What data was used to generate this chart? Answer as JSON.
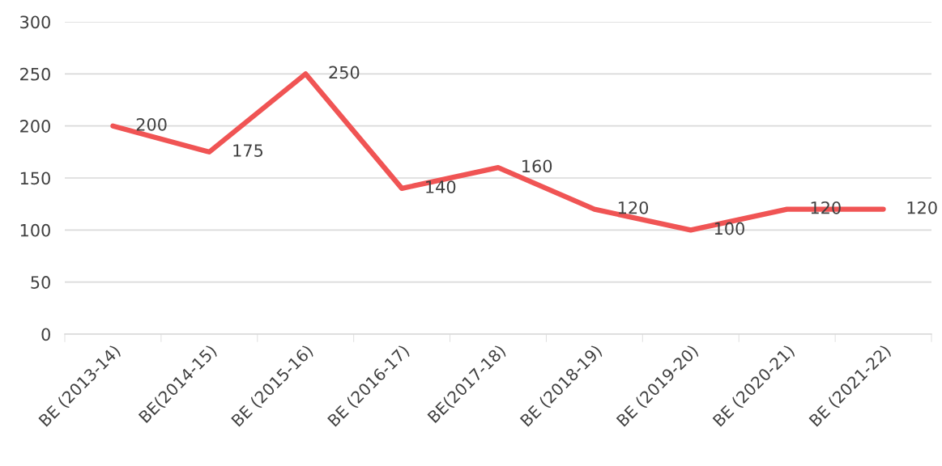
{
  "chart_data": {
    "type": "line",
    "categories": [
      "BE (2013-14)",
      "BE(2014-15)",
      "BE (2015-16)",
      "BE (2016-17)",
      "BE(2017-18)",
      "BE (2018-19)",
      "BE (2019-20)",
      "BE (2020-21)",
      "BE (2021-22)"
    ],
    "series": [
      {
        "color": "#f05454",
        "values": [
          200,
          175,
          250,
          140,
          160,
          120,
          100,
          120,
          120
        ]
      }
    ],
    "ylim": [
      0,
      300
    ],
    "yticks": [
      0,
      50,
      100,
      150,
      200,
      250,
      300
    ],
    "grid": "y",
    "data_labels": true,
    "marker": "none",
    "line_style": "solid",
    "legend": false
  }
}
